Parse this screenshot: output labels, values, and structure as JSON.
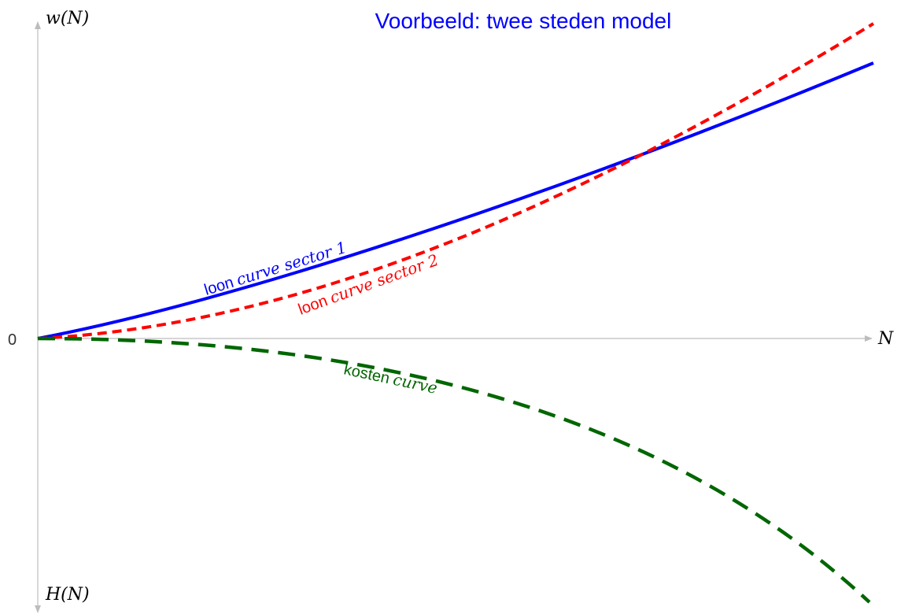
{
  "title": "Voorbeeld: twee steden model",
  "axes": {
    "y_top": "w(N)",
    "y_bottom": "H(N)",
    "x": "N",
    "origin": "0"
  },
  "curves": [
    {
      "plain": "loon",
      "italic": "curve sector 1"
    },
    {
      "plain": "loon",
      "italic": "curve sector 2"
    },
    {
      "plain": "kosten",
      "italic": "curve"
    }
  ]
}
